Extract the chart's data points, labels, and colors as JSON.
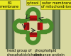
{
  "bg_color": "#d8d8a0",
  "membrane_color": "#7a8a6a",
  "membrane_dark": "#5a6a4a",
  "protein_color": "#4a8a2a",
  "lipid_head_color": "#bb1111",
  "lipid_head_dark": "#881111",
  "arrow_color": "#222222",
  "label_bg": "#e8e820",
  "label_er": "ER\nmembrane",
  "label_cytosol": "cytosol",
  "label_mito": "outer membrane\nof mitochondrion",
  "label_head": "head group of\nphosphatidylcholine",
  "label_protein": "phospholipid\nexchange protein",
  "title_fontsize": 3.5,
  "fig_width": 1.0,
  "fig_height": 1.0
}
